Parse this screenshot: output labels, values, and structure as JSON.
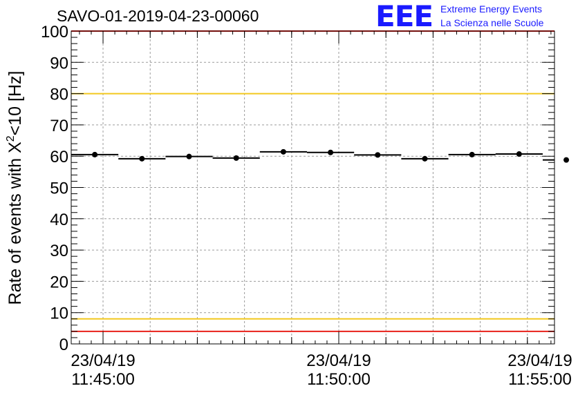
{
  "chart_data": {
    "type": "scatter",
    "title": "SAVO-01-2019-04-23-00060",
    "ylabel": "Rate of events with X",
    "ylabel_sup": "2",
    "ylabel_tail": "<10 [Hz]",
    "xlabel": "",
    "ylim": [
      0,
      100
    ],
    "yticks": [
      "0",
      "10",
      "20",
      "30",
      "40",
      "50",
      "60",
      "70",
      "80",
      "90",
      "100"
    ],
    "xlim": [
      0,
      20.5
    ],
    "xtick_labels": [
      {
        "x": 1.35,
        "date": "23/04/19",
        "time": "11:45:00"
      },
      {
        "x": 11.35,
        "date": "23/04/19",
        "time": "11:50:00"
      },
      {
        "x": 21.35,
        "date": "23/04/19",
        "time": "11:55:00"
      }
    ],
    "x_minor_ticks": [
      1.35,
      3.35,
      5.35,
      7.35,
      9.35,
      11.35,
      13.35,
      15.35,
      17.35,
      19.35
    ],
    "grid": true,
    "bin_width": 2,
    "points": [
      {
        "x": 1,
        "y": 60.5,
        "yerr": 0.6
      },
      {
        "x": 3,
        "y": 59.2,
        "yerr": 0.6
      },
      {
        "x": 5,
        "y": 59.9,
        "yerr": 0.6
      },
      {
        "x": 7,
        "y": 59.4,
        "yerr": 0.6
      },
      {
        "x": 9,
        "y": 61.4,
        "yerr": 0.6
      },
      {
        "x": 11,
        "y": 61.2,
        "yerr": 0.6
      },
      {
        "x": 13,
        "y": 60.4,
        "yerr": 0.6
      },
      {
        "x": 15,
        "y": 59.2,
        "yerr": 0.6
      },
      {
        "x": 17,
        "y": 60.5,
        "yerr": 0.6
      },
      {
        "x": 19,
        "y": 60.7,
        "yerr": 0.6
      },
      {
        "x": 21,
        "y": 58.8,
        "yerr": 0.6
      }
    ],
    "reference_lines": [
      {
        "y": 100,
        "color": "#e8201a"
      },
      {
        "y": 80,
        "color": "#f2c81e"
      },
      {
        "y": 8,
        "color": "#f2c81e"
      },
      {
        "y": 4,
        "color": "#e8201a"
      }
    ]
  },
  "logo": {
    "mark": "EEE",
    "line1": "Extreme Energy Events",
    "line2": "La Scienza nelle Scuole",
    "color": "#1a1aff"
  }
}
